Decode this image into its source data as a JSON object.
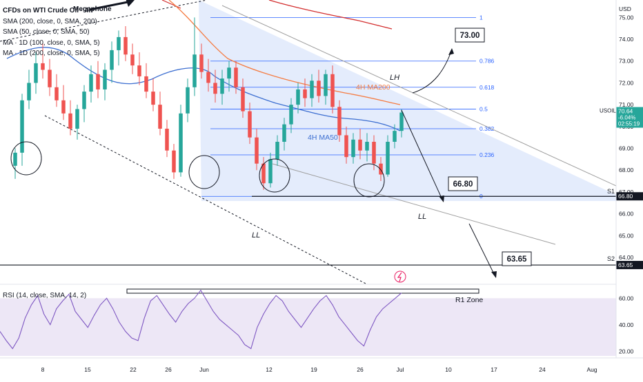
{
  "legend": {
    "title": "CFDs on WTI Crude Oil · 4h",
    "overlay": "Megaphone",
    "lines": [
      "SMA (200, close, 0, SMA, 200)",
      "SMA (50, close, 0, SMA, 50)",
      "MA · 1D (100, close, 0, SMA, 5)",
      "MA · 1D (200, close, 0, SMA, 5)"
    ]
  },
  "price_axis": {
    "currency": "USD",
    "ticks": [
      "75.00",
      "74.00",
      "73.00",
      "72.00",
      "71.00",
      "70.00",
      "69.00",
      "68.00",
      "67.00",
      "66.00",
      "65.00",
      "64.00"
    ]
  },
  "price_tags": {
    "symbol": "USOIL",
    "price": "70.64",
    "change": "-6.04%",
    "countdown": "02:55:19",
    "s1_value": "66.80",
    "s2_value": "63.65"
  },
  "rsi": {
    "legend": "RSI (14, close, SMA, 14, 2)",
    "ticks": [
      "60.00",
      "40.00",
      "20.00"
    ],
    "zone_label": "R1 Zone"
  },
  "time_axis": [
    "8",
    "15",
    "22",
    "26",
    "Jun",
    "12",
    "19",
    "26",
    "Jul",
    "10",
    "17",
    "24",
    "Aug"
  ],
  "annotations": {
    "lh": "LH",
    "ll_bottom": "LL",
    "ll_right": "LL",
    "ma200": "4H MA200",
    "ma50": "4H MA50",
    "s1": "S1",
    "s2": "S2",
    "target1": "73.00",
    "target2": "66.80",
    "target3": "63.65"
  },
  "fib_levels": [
    {
      "label": "1",
      "price": 75.0
    },
    {
      "label": "0.786",
      "price": 73.0
    },
    {
      "label": "0.618",
      "price": 71.8
    },
    {
      "label": "0.5",
      "price": 70.8
    },
    {
      "label": "0.382",
      "price": 69.9
    },
    {
      "label": "0.236",
      "price": 68.7
    },
    {
      "label": "0",
      "price": 66.8
    }
  ],
  "colors": {
    "up": "#26a69a",
    "down": "#ef5350",
    "ma200": "#f57c42",
    "ma50": "#3d6fd1",
    "daily_ma200": "#d32f2f",
    "fib": "#2962ff",
    "channel_fill": "#dbe5fb",
    "rsi_line": "#7e57c2",
    "rsi_band": "#ede7f6"
  },
  "chart_data": {
    "type": "candlestick",
    "title": "CFDs on WTI Crude Oil · 4h",
    "ylabel": "USD",
    "ylim": [
      62.8,
      75.8
    ],
    "candles": [
      {
        "x": "May 5",
        "o": 68.2,
        "h": 69.0,
        "l": 67.6,
        "c": 68.8
      },
      {
        "x": "May 6",
        "o": 68.8,
        "h": 71.5,
        "l": 68.2,
        "c": 71.2
      },
      {
        "x": "May 7",
        "o": 71.2,
        "h": 72.6,
        "l": 70.8,
        "c": 72.0
      },
      {
        "x": "May 8",
        "o": 72.0,
        "h": 73.4,
        "l": 71.5,
        "c": 72.9
      },
      {
        "x": "May 9",
        "o": 72.9,
        "h": 73.8,
        "l": 72.2,
        "c": 72.6
      },
      {
        "x": "May 10",
        "o": 72.6,
        "h": 73.1,
        "l": 71.4,
        "c": 71.8
      },
      {
        "x": "May 11",
        "o": 71.8,
        "h": 72.4,
        "l": 70.9,
        "c": 71.2
      },
      {
        "x": "May 12",
        "o": 71.2,
        "h": 71.9,
        "l": 70.3,
        "c": 70.6
      },
      {
        "x": "May 13",
        "o": 70.6,
        "h": 71.2,
        "l": 69.6,
        "c": 69.9
      },
      {
        "x": "May 14",
        "o": 69.9,
        "h": 71.0,
        "l": 69.4,
        "c": 70.8
      },
      {
        "x": "May 15",
        "o": 70.8,
        "h": 71.9,
        "l": 70.2,
        "c": 71.6
      },
      {
        "x": "May 16",
        "o": 71.6,
        "h": 72.8,
        "l": 71.1,
        "c": 72.4
      },
      {
        "x": "May 17",
        "o": 72.4,
        "h": 73.0,
        "l": 71.3,
        "c": 71.7
      },
      {
        "x": "May 18",
        "o": 71.7,
        "h": 72.9,
        "l": 71.2,
        "c": 72.6
      },
      {
        "x": "May 19",
        "o": 72.6,
        "h": 73.9,
        "l": 72.0,
        "c": 73.5
      },
      {
        "x": "May 20",
        "o": 73.5,
        "h": 74.4,
        "l": 72.8,
        "c": 74.1
      },
      {
        "x": "May 21",
        "o": 74.1,
        "h": 74.6,
        "l": 73.0,
        "c": 73.3
      },
      {
        "x": "May 22",
        "o": 73.3,
        "h": 73.8,
        "l": 72.4,
        "c": 72.8
      },
      {
        "x": "May 23",
        "o": 72.8,
        "h": 73.4,
        "l": 71.9,
        "c": 72.3
      },
      {
        "x": "May 24",
        "o": 72.3,
        "h": 72.9,
        "l": 71.3,
        "c": 71.6
      },
      {
        "x": "May 25",
        "o": 71.6,
        "h": 72.2,
        "l": 70.7,
        "c": 71.0
      },
      {
        "x": "May 26",
        "o": 71.0,
        "h": 71.6,
        "l": 69.6,
        "c": 69.9
      },
      {
        "x": "May 27",
        "o": 69.9,
        "h": 70.3,
        "l": 68.6,
        "c": 68.9
      },
      {
        "x": "May 28",
        "o": 68.9,
        "h": 69.2,
        "l": 67.6,
        "c": 67.9
      },
      {
        "x": "May 29",
        "o": 67.9,
        "h": 71.0,
        "l": 67.7,
        "c": 70.6
      },
      {
        "x": "May 30",
        "o": 70.6,
        "h": 72.2,
        "l": 70.2,
        "c": 71.8
      },
      {
        "x": "May 31",
        "o": 71.8,
        "h": 75.0,
        "l": 71.4,
        "c": 73.3
      },
      {
        "x": "Jun 1",
        "o": 73.3,
        "h": 73.8,
        "l": 72.2,
        "c": 72.5
      },
      {
        "x": "Jun 2",
        "o": 72.5,
        "h": 73.1,
        "l": 71.6,
        "c": 72.0
      },
      {
        "x": "Jun 3",
        "o": 72.0,
        "h": 72.6,
        "l": 71.1,
        "c": 71.5
      },
      {
        "x": "Jun 4",
        "o": 71.5,
        "h": 72.6,
        "l": 71.0,
        "c": 72.2
      },
      {
        "x": "Jun 5",
        "o": 72.2,
        "h": 73.0,
        "l": 71.6,
        "c": 72.7
      },
      {
        "x": "Jun 6",
        "o": 72.7,
        "h": 73.0,
        "l": 71.5,
        "c": 71.8
      },
      {
        "x": "Jun 7",
        "o": 71.8,
        "h": 72.2,
        "l": 70.4,
        "c": 70.7
      },
      {
        "x": "Jun 8",
        "o": 70.7,
        "h": 71.1,
        "l": 69.2,
        "c": 69.5
      },
      {
        "x": "Jun 9",
        "o": 69.5,
        "h": 69.9,
        "l": 68.0,
        "c": 68.3
      },
      {
        "x": "Jun 10",
        "o": 68.3,
        "h": 68.6,
        "l": 67.1,
        "c": 67.4
      },
      {
        "x": "Jun 11",
        "o": 67.4,
        "h": 68.8,
        "l": 67.2,
        "c": 68.5
      },
      {
        "x": "Jun 12",
        "o": 68.5,
        "h": 69.6,
        "l": 68.2,
        "c": 69.3
      },
      {
        "x": "Jun 13",
        "o": 69.3,
        "h": 70.4,
        "l": 68.9,
        "c": 70.1
      },
      {
        "x": "Jun 14",
        "o": 70.1,
        "h": 71.3,
        "l": 69.7,
        "c": 71.0
      },
      {
        "x": "Jun 15",
        "o": 71.0,
        "h": 72.0,
        "l": 70.6,
        "c": 71.7
      },
      {
        "x": "Jun 16",
        "o": 71.7,
        "h": 72.2,
        "l": 70.9,
        "c": 71.3
      },
      {
        "x": "Jun 17",
        "o": 71.3,
        "h": 72.4,
        "l": 70.9,
        "c": 72.1
      },
      {
        "x": "Jun 18",
        "o": 72.1,
        "h": 72.6,
        "l": 71.1,
        "c": 71.4
      },
      {
        "x": "Jun 19",
        "o": 71.4,
        "h": 72.6,
        "l": 71.0,
        "c": 72.4
      },
      {
        "x": "Jun 20",
        "o": 72.4,
        "h": 72.8,
        "l": 70.6,
        "c": 70.9
      },
      {
        "x": "Jun 21",
        "o": 70.9,
        "h": 71.2,
        "l": 69.3,
        "c": 69.6
      },
      {
        "x": "Jun 22",
        "o": 69.6,
        "h": 70.0,
        "l": 68.3,
        "c": 68.6
      },
      {
        "x": "Jun 23",
        "o": 68.6,
        "h": 69.7,
        "l": 68.3,
        "c": 69.4
      },
      {
        "x": "Jun 24",
        "o": 69.4,
        "h": 69.9,
        "l": 68.5,
        "c": 68.9
      },
      {
        "x": "Jun 25",
        "o": 68.9,
        "h": 69.7,
        "l": 68.4,
        "c": 69.3
      },
      {
        "x": "Jun 26",
        "o": 69.3,
        "h": 69.6,
        "l": 68.0,
        "c": 68.3
      },
      {
        "x": "Jun 27",
        "o": 68.3,
        "h": 68.6,
        "l": 67.5,
        "c": 67.8
      },
      {
        "x": "Jun 28",
        "o": 67.8,
        "h": 69.6,
        "l": 67.7,
        "c": 69.3
      },
      {
        "x": "Jun 29",
        "o": 69.3,
        "h": 70.1,
        "l": 69.0,
        "c": 69.8
      },
      {
        "x": "Jun 30",
        "o": 69.8,
        "h": 70.8,
        "l": 69.5,
        "c": 70.64
      }
    ],
    "series": [
      {
        "name": "4H MA200",
        "values": [
          73.9,
          73.8,
          73.7,
          73.6,
          73.5,
          73.4,
          73.3,
          73.2,
          73.1,
          73.0,
          72.9,
          72.8,
          72.7,
          72.6,
          72.5,
          72.4,
          72.3,
          72.2,
          72.1,
          72.0,
          71.9,
          71.8,
          71.7,
          71.6,
          71.5,
          71.4,
          71.3,
          71.2,
          71.1,
          71.0,
          70.95,
          70.9,
          70.85,
          70.8
        ]
      },
      {
        "name": "4H MA50",
        "values": [
          71.4,
          71.6,
          71.8,
          71.9,
          71.9,
          71.8,
          71.6,
          71.4,
          71.2,
          71.0,
          70.9,
          70.8,
          70.7,
          70.7,
          70.6,
          70.5,
          70.4,
          70.3,
          70.2,
          70.1,
          70.0,
          69.9,
          69.9,
          69.8,
          69.8,
          69.8
        ]
      }
    ],
    "rsi": {
      "ylim": [
        15,
        70
      ],
      "values": [
        35,
        28,
        22,
        30,
        45,
        55,
        62,
        48,
        40,
        52,
        58,
        63,
        50,
        44,
        38,
        47,
        55,
        60,
        52,
        42,
        35,
        30,
        28,
        45,
        58,
        62,
        55,
        48,
        42,
        50,
        56,
        60,
        66,
        58,
        50,
        44,
        40,
        36,
        32,
        25,
        22,
        38,
        48,
        56,
        62,
        58,
        50,
        44,
        38,
        45,
        52,
        58,
        62,
        55,
        46,
        40,
        34,
        28,
        24,
        36,
        46,
        52,
        56,
        60,
        64
      ]
    }
  }
}
